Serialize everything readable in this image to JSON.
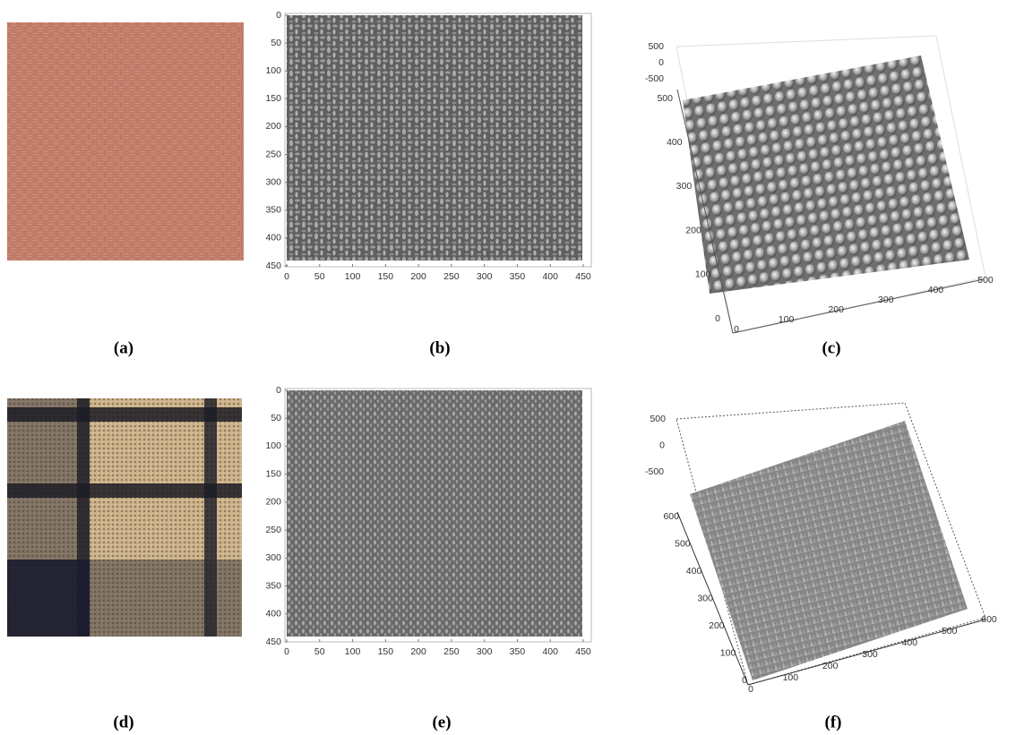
{
  "panels": [
    {
      "caption": "(a)"
    },
    {
      "caption": "(b)",
      "xticks": [
        0,
        50,
        100,
        150,
        200,
        250,
        300,
        350,
        400,
        450
      ],
      "yticks": [
        0,
        50,
        100,
        150,
        200,
        250,
        300,
        350,
        400,
        450
      ]
    },
    {
      "caption": "(c)",
      "xticks": [
        0,
        100,
        200,
        300,
        400,
        500
      ],
      "yticks": [
        0,
        100,
        200,
        300,
        400,
        500
      ],
      "zticks": [
        500,
        0,
        -500
      ]
    },
    {
      "caption": "(d)"
    },
    {
      "caption": "(e)",
      "xticks": [
        0,
        50,
        100,
        150,
        200,
        250,
        300,
        350,
        400,
        450
      ],
      "yticks": [
        0,
        50,
        100,
        150,
        200,
        250,
        300,
        350,
        400,
        450
      ]
    },
    {
      "caption": "(f)",
      "xticks": [
        0,
        100,
        200,
        300,
        400,
        500,
        600
      ],
      "yticks": [
        0,
        100,
        200,
        300,
        400,
        500,
        600
      ],
      "zticks": [
        500,
        0,
        -500
      ]
    }
  ]
}
